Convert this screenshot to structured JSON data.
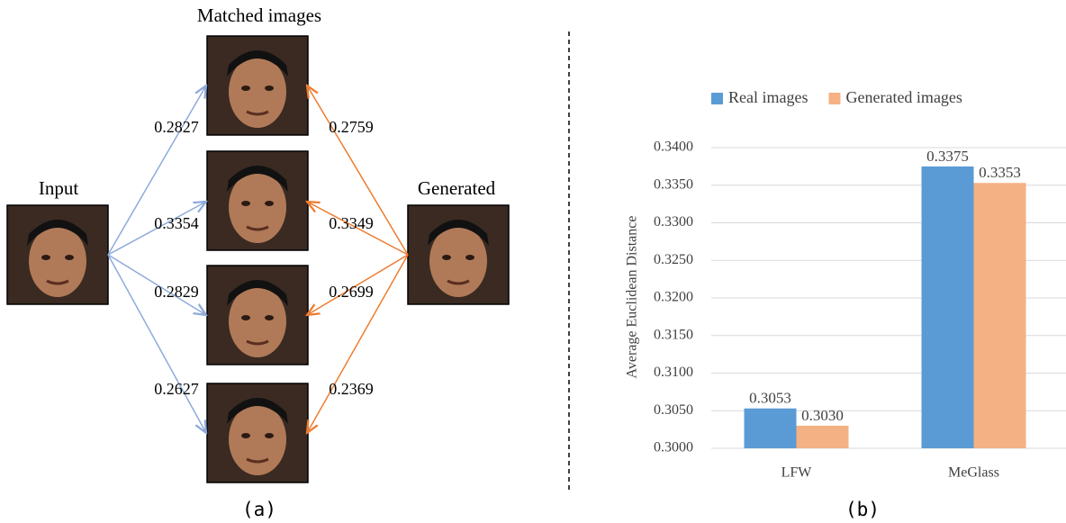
{
  "diagram": {
    "matched_title": "Matched images",
    "input_label": "Input",
    "generated_label": "Generated",
    "input_distances": [
      "0.2827",
      "0.3354",
      "0.2829",
      "0.2627"
    ],
    "generated_distances": [
      "0.2759",
      "0.3349",
      "0.2699",
      "0.2369"
    ],
    "caption": "(a)"
  },
  "chart_data": {
    "type": "bar",
    "caption": "(b)",
    "y_label": "Average Euclidean Distance",
    "categories": [
      "LFW",
      "MeGlass"
    ],
    "series": [
      {
        "name": "Real images",
        "color": "#5b9bd5",
        "values": [
          0.3053,
          0.3375
        ]
      },
      {
        "name": "Generated images",
        "color": "#f4b183",
        "values": [
          0.303,
          0.3353
        ],
        "value_labels": [
          "0.3030",
          "0.3353"
        ]
      }
    ],
    "ylim": [
      0.3,
      0.34
    ],
    "yticks": [
      {
        "value": 0.3,
        "label": "0.3000"
      },
      {
        "value": 0.305,
        "label": "0.3050"
      },
      {
        "value": 0.31,
        "label": "0.3100"
      },
      {
        "value": 0.315,
        "label": "0.3150"
      },
      {
        "value": 0.32,
        "label": "0.3200"
      },
      {
        "value": 0.325,
        "label": "0.3250"
      },
      {
        "value": 0.33,
        "label": "0.3300"
      },
      {
        "value": 0.335,
        "label": "0.3350"
      },
      {
        "value": 0.34,
        "label": "0.3400"
      }
    ],
    "grid": true,
    "legend": "top"
  }
}
